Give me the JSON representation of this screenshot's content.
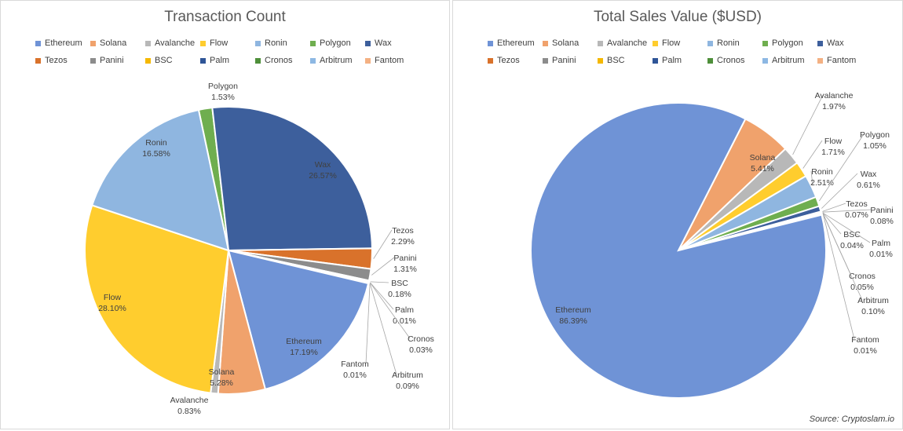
{
  "chart_data": [
    {
      "type": "pie",
      "title": "Transaction Count",
      "legend_placement": "top",
      "categories": [
        "Ethereum",
        "Solana",
        "Avalanche",
        "Flow",
        "Ronin",
        "Polygon",
        "Wax",
        "Tezos",
        "Panini",
        "BSC",
        "Palm",
        "Cronos",
        "Arbitrum",
        "Fantom"
      ],
      "values": [
        17.19,
        5.28,
        0.83,
        28.1,
        16.58,
        1.53,
        26.57,
        2.29,
        1.31,
        0.18,
        0.01,
        0.03,
        0.09,
        0.01
      ],
      "value_labels": [
        "17.19%",
        "5.28%",
        "0.83%",
        "28.10%",
        "16.58%",
        "1.53%",
        "26.57%",
        "2.29%",
        "1.31%",
        "0.18%",
        "0.01%",
        "0.03%",
        "0.09%",
        "0.01%"
      ],
      "colors": [
        "#6f93d6",
        "#f0a26c",
        "#b8b8b8",
        "#ffcd2e",
        "#8fb6e0",
        "#6fae4f",
        "#3d5f9c",
        "#d9722b",
        "#8c8c8c",
        "#f5b800",
        "#2f5597",
        "#4e8f3a",
        "#8db8e3",
        "#f4b183"
      ]
    },
    {
      "type": "pie",
      "title": "Total Sales Value ($USD)",
      "legend_placement": "top",
      "categories": [
        "Ethereum",
        "Solana",
        "Avalanche",
        "Flow",
        "Ronin",
        "Polygon",
        "Wax",
        "Tezos",
        "Panini",
        "BSC",
        "Palm",
        "Cronos",
        "Arbitrum",
        "Fantom"
      ],
      "values": [
        86.39,
        5.41,
        1.97,
        1.71,
        2.51,
        1.05,
        0.61,
        0.07,
        0.08,
        0.04,
        0.01,
        0.05,
        0.1,
        0.01
      ],
      "value_labels": [
        "86.39%",
        "5.41%",
        "1.97%",
        "1.71%",
        "2.51%",
        "1.05%",
        "0.61%",
        "0.07%",
        "0.08%",
        "0.04%",
        "0.01%",
        "0.05%",
        "0.10%",
        "0.01%"
      ],
      "colors": [
        "#6f93d6",
        "#f0a26c",
        "#b8b8b8",
        "#ffcd2e",
        "#8fb6e0",
        "#6fae4f",
        "#3d5f9c",
        "#d9722b",
        "#8c8c8c",
        "#f5b800",
        "#2f5597",
        "#4e8f3a",
        "#8db8e3",
        "#f4b183"
      ]
    }
  ],
  "source": "Source: Cryptoslam.io"
}
